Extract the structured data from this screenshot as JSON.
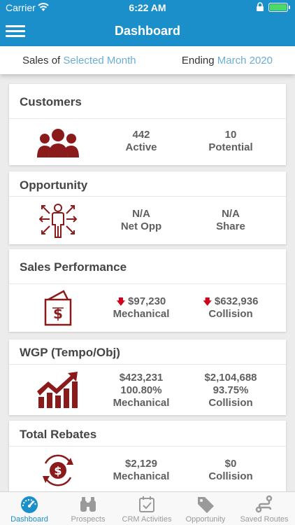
{
  "status_bar": {
    "carrier": "Carrier",
    "time": "6:22 AM"
  },
  "nav": {
    "title": "Dashboard",
    "menu_icon": "hamburger-menu-icon"
  },
  "period": {
    "sales_of_label": "Sales of",
    "sales_of_value": "Selected Month",
    "ending_label": "Ending",
    "ending_value": "March 2020"
  },
  "cards": {
    "customers": {
      "title": "Customers",
      "icon": "people-group-icon",
      "col1_value": "442",
      "col1_label": "Active",
      "col2_value": "10",
      "col2_label": "Potential"
    },
    "opportunity": {
      "title": "Opportunity",
      "icon": "person-arrows-icon",
      "col1_value": "N/A",
      "col1_label": "Net Opp",
      "col2_value": "N/A",
      "col2_label": "Share"
    },
    "sales_performance": {
      "title": "Sales Performance",
      "icon": "dollar-bag-icon",
      "col1_value": "$97,230",
      "col1_label": "Mechanical",
      "col2_value": "$632,936",
      "col2_label": "Collision"
    },
    "wgp": {
      "title": "WGP (Tempo/Obj)",
      "icon": "growth-chart-icon",
      "col1_value": "$423,231",
      "col1_pct": "100.80%",
      "col1_label": "Mechanical",
      "col2_value": "$2,104,688",
      "col2_pct": "93.75%",
      "col2_label": "Collision"
    },
    "rebates": {
      "title": "Total Rebates",
      "icon": "dollar-cycle-icon",
      "col1_value": "$2,129",
      "col1_label": "Mechanical",
      "col2_value": "$0",
      "col2_label": "Collision"
    }
  },
  "tabs": [
    {
      "label": "Dashboard",
      "icon": "speedometer-icon",
      "active": true
    },
    {
      "label": "Prospects",
      "icon": "binoculars-icon",
      "active": false
    },
    {
      "label": "CRM Activities",
      "icon": "calendar-check-icon",
      "active": false
    },
    {
      "label": "Opportunity",
      "icon": "tag-icon",
      "active": false
    },
    {
      "label": "Saved Routes",
      "icon": "route-icon",
      "active": false
    }
  ],
  "colors": {
    "primary": "#1a8fca",
    "accent_text": "#6aaed6",
    "icon_red": "#8b1a1a",
    "down_arrow": "#d0021b"
  }
}
